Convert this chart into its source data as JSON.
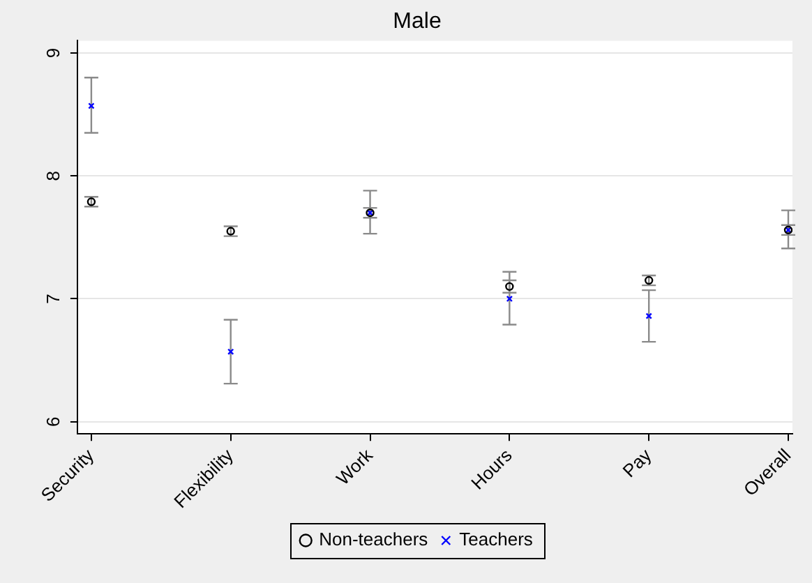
{
  "chart_data": {
    "type": "scatter",
    "title": "Male",
    "categories": [
      "Security",
      "Flexibility",
      "Work",
      "Hours",
      "Pay",
      "Overall"
    ],
    "series": [
      {
        "name": "Non-teachers",
        "color": "#000000",
        "marker": "circle",
        "values": [
          7.79,
          7.55,
          7.7,
          7.1,
          7.15,
          7.56
        ],
        "errors": [
          0.04,
          0.04,
          0.04,
          0.05,
          0.04,
          0.04
        ]
      },
      {
        "name": "Teachers",
        "color": "#0000ff",
        "marker": "cross",
        "values": [
          8.57,
          6.57,
          7.7,
          7.0,
          6.86,
          7.56
        ],
        "errors": [
          [
            8.35,
            8.8
          ],
          [
            6.31,
            6.83
          ],
          [
            7.53,
            7.88
          ],
          [
            6.79,
            7.22
          ],
          [
            6.65,
            7.07
          ],
          [
            7.41,
            7.72
          ]
        ]
      }
    ],
    "ylim": [
      5.9,
      9.1
    ],
    "yticks": [
      6,
      7,
      8,
      9
    ],
    "grid": "y",
    "legend": "bottom"
  }
}
